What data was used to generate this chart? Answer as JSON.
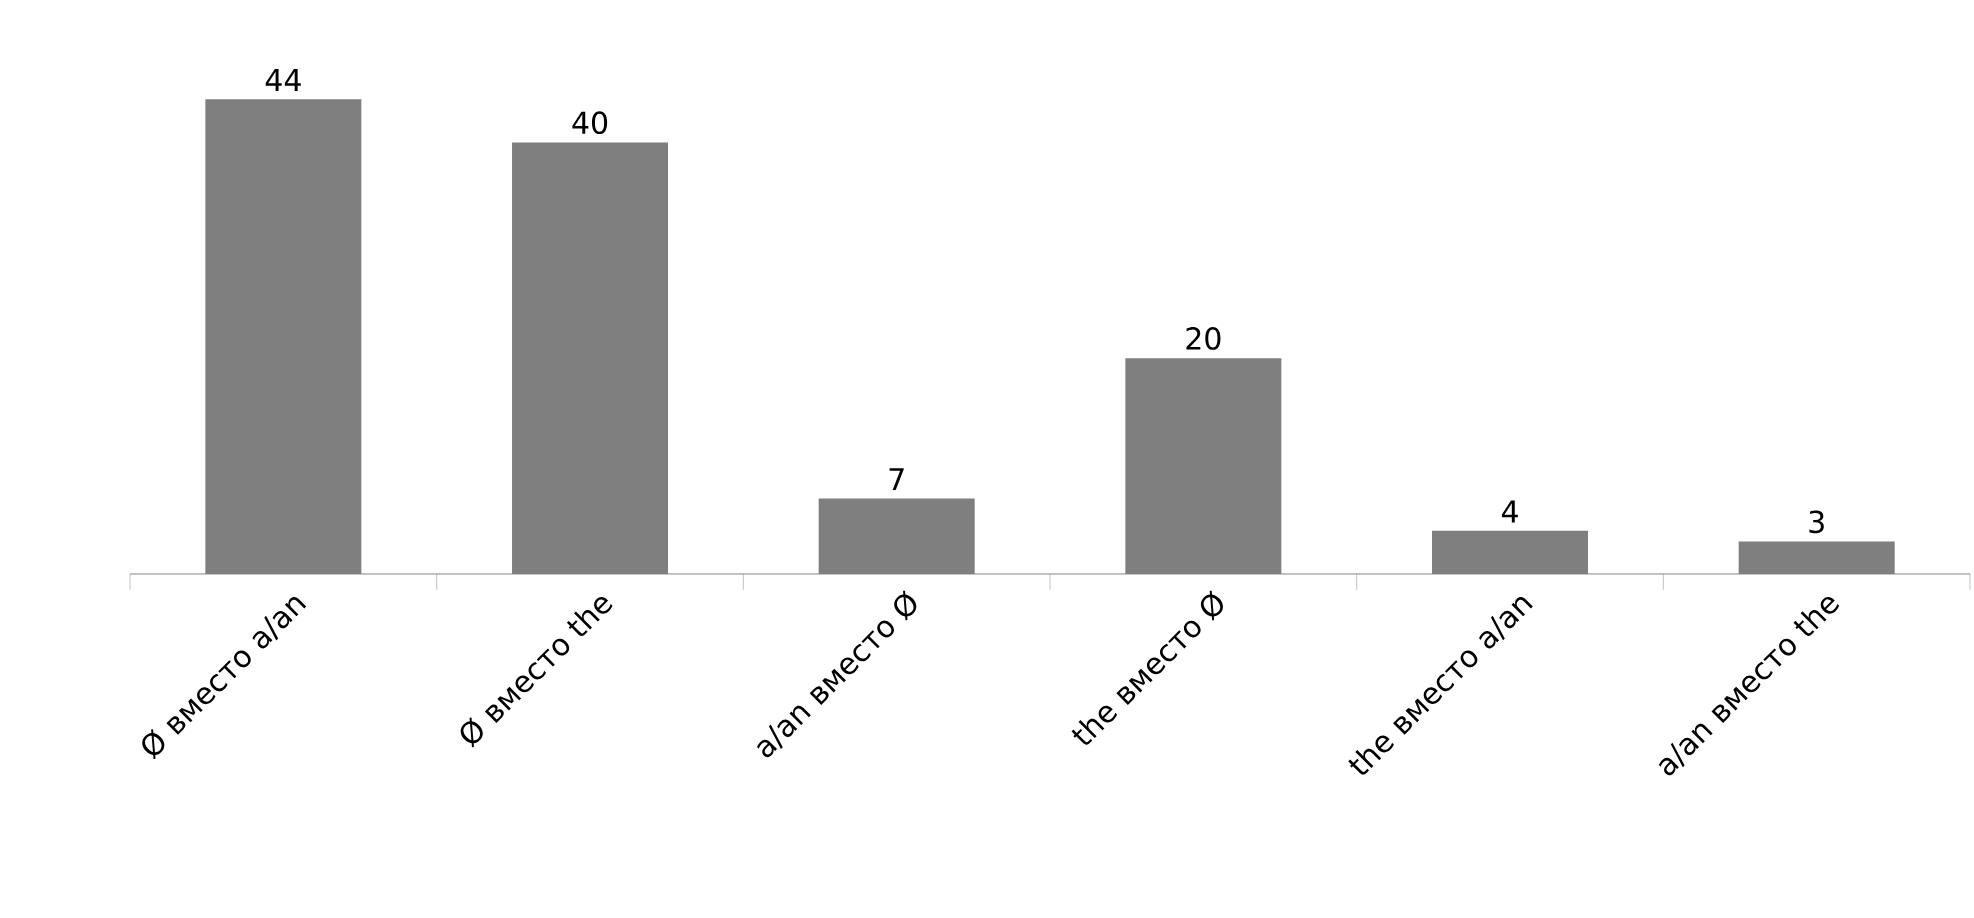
{
  "chart_data": {
    "type": "bar",
    "categories": [
      "Ø вместо a/an",
      "Ø вместо the",
      "a/an вместо Ø",
      "the вместо Ø",
      "the вместо a/an",
      "a/an вместо the"
    ],
    "values": [
      44,
      40,
      7,
      20,
      4,
      3
    ],
    "colors": [
      "#7f7f7f",
      "#7f7f7f",
      "#7f7f7f",
      "#7f7f7f",
      "#7f7f7f",
      "#7f7f7f"
    ],
    "data_labels": true
  }
}
